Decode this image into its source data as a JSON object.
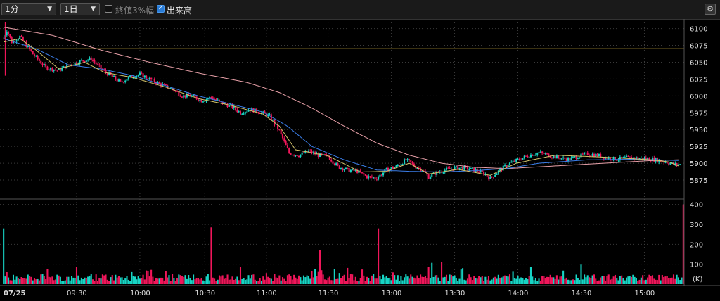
{
  "toolbar": {
    "interval": "1分",
    "range": "1日",
    "pct_label": "終値3%幅",
    "pct_checked": false,
    "volume_label": "出来高",
    "volume_checked": true,
    "settings_icon": "gear-icon"
  },
  "colors": {
    "up": "#17d4c4",
    "down": "#f0165a",
    "ma_short": "#d4c46a",
    "ma_mid": "#3a7de8",
    "ma_long": "#e8a0a8",
    "ref_line": "#e8c34a",
    "grid": "#3a3a3a"
  },
  "chart_data": [
    {
      "type": "candlestick",
      "name": "price",
      "ylim": [
        5850,
        6110
      ],
      "yticks": [
        6100,
        6075,
        6050,
        6025,
        6000,
        5975,
        5950,
        5925,
        5900,
        5875
      ],
      "ref_line": 6070,
      "grid": true,
      "keypoints": [
        [
          0,
          6085
        ],
        [
          2,
          6098
        ],
        [
          5,
          6080
        ],
        [
          10,
          6088
        ],
        [
          18,
          6062
        ],
        [
          26,
          6042
        ],
        [
          34,
          6038
        ],
        [
          40,
          6046
        ],
        [
          48,
          6052
        ],
        [
          54,
          6055
        ],
        [
          60,
          6040
        ],
        [
          66,
          6030
        ],
        [
          72,
          6020
        ],
        [
          78,
          6028
        ],
        [
          84,
          6032
        ],
        [
          90,
          6025
        ],
        [
          96,
          6018
        ],
        [
          104,
          6010
        ],
        [
          110,
          6000
        ],
        [
          116,
          6000
        ],
        [
          122,
          5993
        ],
        [
          128,
          5998
        ],
        [
          134,
          5990
        ],
        [
          140,
          5985
        ],
        [
          146,
          5975
        ],
        [
          152,
          5980
        ],
        [
          158,
          5976
        ],
        [
          164,
          5970
        ],
        [
          170,
          5948
        ],
        [
          176,
          5915
        ],
        [
          182,
          5912
        ],
        [
          188,
          5918
        ],
        [
          194,
          5912
        ],
        [
          200,
          5910
        ],
        [
          206,
          5895
        ],
        [
          212,
          5890
        ],
        [
          218,
          5888
        ],
        [
          224,
          5880
        ],
        [
          230,
          5878
        ],
        [
          236,
          5890
        ],
        [
          242,
          5895
        ],
        [
          248,
          5905
        ],
        [
          254,
          5895
        ],
        [
          258,
          5890
        ],
        [
          262,
          5880
        ],
        [
          266,
          5885
        ],
        [
          272,
          5890
        ],
        [
          278,
          5893
        ],
        [
          284,
          5893
        ],
        [
          290,
          5890
        ],
        [
          296,
          5885
        ],
        [
          300,
          5878
        ],
        [
          306,
          5890
        ],
        [
          312,
          5900
        ],
        [
          318,
          5906
        ],
        [
          324,
          5912
        ],
        [
          330,
          5916
        ],
        [
          336,
          5912
        ],
        [
          342,
          5908
        ],
        [
          348,
          5906
        ],
        [
          354,
          5910
        ],
        [
          360,
          5914
        ],
        [
          366,
          5912
        ],
        [
          372,
          5908
        ],
        [
          378,
          5906
        ],
        [
          384,
          5908
        ],
        [
          390,
          5908
        ],
        [
          396,
          5907
        ],
        [
          402,
          5905
        ],
        [
          408,
          5902
        ],
        [
          414,
          5898
        ]
      ],
      "ma_short_keypoints": [
        [
          0,
          6080
        ],
        [
          10,
          6085
        ],
        [
          20,
          6068
        ],
        [
          34,
          6040
        ],
        [
          50,
          6050
        ],
        [
          62,
          6035
        ],
        [
          80,
          6027
        ],
        [
          100,
          6013
        ],
        [
          120,
          5996
        ],
        [
          140,
          5986
        ],
        [
          160,
          5973
        ],
        [
          170,
          5955
        ],
        [
          180,
          5920
        ],
        [
          200,
          5911
        ],
        [
          220,
          5887
        ],
        [
          236,
          5888
        ],
        [
          250,
          5900
        ],
        [
          262,
          5884
        ],
        [
          280,
          5891
        ],
        [
          300,
          5882
        ],
        [
          316,
          5900
        ],
        [
          340,
          5912
        ],
        [
          370,
          5909
        ],
        [
          400,
          5905
        ],
        [
          410,
          5902
        ],
        [
          416,
          5896
        ]
      ],
      "ma_mid_keypoints": [
        [
          0,
          6085
        ],
        [
          20,
          6070
        ],
        [
          40,
          6046
        ],
        [
          60,
          6040
        ],
        [
          80,
          6030
        ],
        [
          100,
          6015
        ],
        [
          120,
          6000
        ],
        [
          140,
          5988
        ],
        [
          160,
          5976
        ],
        [
          175,
          5955
        ],
        [
          190,
          5925
        ],
        [
          210,
          5905
        ],
        [
          230,
          5890
        ],
        [
          250,
          5888
        ],
        [
          270,
          5887
        ],
        [
          290,
          5889
        ],
        [
          310,
          5892
        ],
        [
          330,
          5900
        ],
        [
          360,
          5905
        ],
        [
          390,
          5906
        ],
        [
          416,
          5904
        ]
      ],
      "ma_long_keypoints": [
        [
          0,
          6102
        ],
        [
          30,
          6090
        ],
        [
          60,
          6068
        ],
        [
          90,
          6050
        ],
        [
          120,
          6034
        ],
        [
          150,
          6020
        ],
        [
          170,
          6005
        ],
        [
          190,
          5982
        ],
        [
          210,
          5955
        ],
        [
          230,
          5930
        ],
        [
          250,
          5912
        ],
        [
          270,
          5900
        ],
        [
          290,
          5894
        ],
        [
          310,
          5892
        ],
        [
          340,
          5896
        ],
        [
          370,
          5900
        ],
        [
          400,
          5904
        ],
        [
          416,
          5905
        ]
      ],
      "bars": 418
    },
    {
      "type": "bar",
      "name": "volume",
      "ylabel": "(K)",
      "ylim": [
        0,
        420
      ],
      "yticks": [
        400,
        300,
        200,
        100
      ],
      "x_time_labels": [
        "07/25",
        "09:30",
        "10:00",
        "10:30",
        "11:00",
        "11:30",
        "13:00",
        "13:30",
        "14:00",
        "14:30",
        "15:00"
      ],
      "x_time_bar_index": [
        0,
        45,
        84,
        124,
        162,
        200,
        239,
        278,
        317,
        356,
        395
      ],
      "spikes": [
        [
          0,
          280
        ],
        [
          2,
          60
        ],
        [
          27,
          75
        ],
        [
          128,
          285
        ],
        [
          195,
          170
        ],
        [
          231,
          280
        ],
        [
          270,
          110
        ],
        [
          419,
          400
        ]
      ]
    }
  ]
}
